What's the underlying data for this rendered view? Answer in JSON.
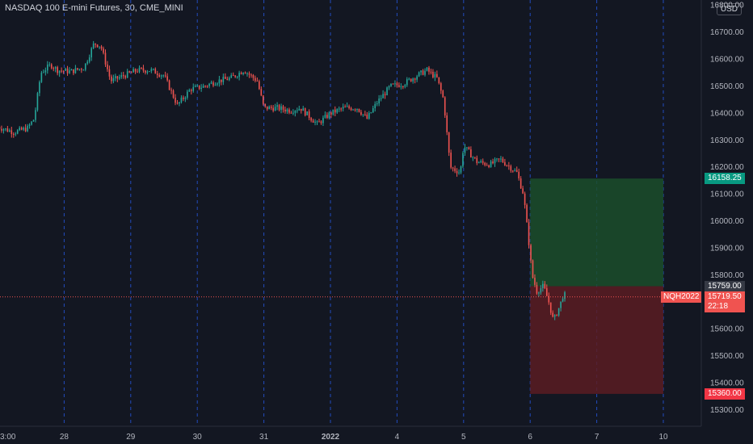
{
  "header": {
    "title": "NASDAQ 100 E-mini Futures, 30, CME_MINI",
    "currency": "USD"
  },
  "colors": {
    "background": "#131722",
    "up": "#26a69a",
    "down": "#ef5350",
    "grid_dashed": "#2962ff",
    "profit_zone": "#1b4d2a",
    "loss_zone": "#5a1c22",
    "target_tag": "#089981",
    "stop_tag": "#f23645",
    "entry_tag": "#363a45",
    "current_tag": "#f05350"
  },
  "chart_data": {
    "type": "candlestick",
    "yaxis": {
      "ticks": [
        "16800.00",
        "16700.00",
        "16600.00",
        "16500.00",
        "16400.00",
        "16300.00",
        "16200.00",
        "16100.00",
        "16000.00",
        "15900.00",
        "15800.00",
        "15700.00",
        "15600.00",
        "15500.00",
        "15400.00",
        "15300.00"
      ],
      "range": [
        15240,
        16820
      ]
    },
    "xaxis": {
      "ticks": [
        {
          "label": "3:00",
          "day": 0
        },
        {
          "label": "28",
          "day": 1
        },
        {
          "label": "29",
          "day": 2
        },
        {
          "label": "30",
          "day": 3
        },
        {
          "label": "31",
          "day": 4
        },
        {
          "label": "2022",
          "day": 5
        },
        {
          "label": "4",
          "day": 6
        },
        {
          "label": "5",
          "day": 7
        },
        {
          "label": "6",
          "day": 8
        },
        {
          "label": "7",
          "day": 9
        },
        {
          "label": "10",
          "day": 10
        }
      ]
    },
    "series": [
      {
        "day": 0.0,
        "close": 16350
      },
      {
        "day": 0.25,
        "close": 16330
      },
      {
        "day": 0.45,
        "close": 16345
      },
      {
        "day": 0.55,
        "close": 16380
      },
      {
        "day": 0.65,
        "close": 16550
      },
      {
        "day": 0.8,
        "close": 16580
      },
      {
        "day": 0.9,
        "close": 16560
      },
      {
        "day": 1.1,
        "close": 16555
      },
      {
        "day": 1.3,
        "close": 16570
      },
      {
        "day": 1.45,
        "close": 16660
      },
      {
        "day": 1.55,
        "close": 16650
      },
      {
        "day": 1.7,
        "close": 16520
      },
      {
        "day": 1.9,
        "close": 16540
      },
      {
        "day": 2.1,
        "close": 16560
      },
      {
        "day": 2.3,
        "close": 16560
      },
      {
        "day": 2.5,
        "close": 16540
      },
      {
        "day": 2.7,
        "close": 16430
      },
      {
        "day": 2.9,
        "close": 16490
      },
      {
        "day": 3.1,
        "close": 16500
      },
      {
        "day": 3.3,
        "close": 16520
      },
      {
        "day": 3.5,
        "close": 16530
      },
      {
        "day": 3.7,
        "close": 16560
      },
      {
        "day": 3.9,
        "close": 16520
      },
      {
        "day": 4.0,
        "close": 16420
      },
      {
        "day": 4.2,
        "close": 16420
      },
      {
        "day": 4.4,
        "close": 16410
      },
      {
        "day": 4.55,
        "close": 16420
      },
      {
        "day": 4.8,
        "close": 16360
      },
      {
        "day": 5.0,
        "close": 16400
      },
      {
        "day": 5.2,
        "close": 16420
      },
      {
        "day": 5.4,
        "close": 16420
      },
      {
        "day": 5.55,
        "close": 16380
      },
      {
        "day": 5.7,
        "close": 16440
      },
      {
        "day": 5.9,
        "close": 16500
      },
      {
        "day": 6.1,
        "close": 16510
      },
      {
        "day": 6.3,
        "close": 16540
      },
      {
        "day": 6.45,
        "close": 16560
      },
      {
        "day": 6.6,
        "close": 16530
      },
      {
        "day": 6.7,
        "close": 16450
      },
      {
        "day": 6.8,
        "close": 16200
      },
      {
        "day": 6.95,
        "close": 16180
      },
      {
        "day": 7.0,
        "close": 16280
      },
      {
        "day": 7.2,
        "close": 16220
      },
      {
        "day": 7.4,
        "close": 16210
      },
      {
        "day": 7.55,
        "close": 16230
      },
      {
        "day": 7.7,
        "close": 16200
      },
      {
        "day": 7.8,
        "close": 16180
      },
      {
        "day": 7.9,
        "close": 16100
      },
      {
        "day": 7.98,
        "close": 15920
      },
      {
        "day": 8.03,
        "close": 15800
      },
      {
        "day": 8.1,
        "close": 15740
      },
      {
        "day": 8.2,
        "close": 15760
      },
      {
        "day": 8.28,
        "close": 15700
      },
      {
        "day": 8.35,
        "close": 15630
      },
      {
        "day": 8.45,
        "close": 15690
      },
      {
        "day": 8.5,
        "close": 15730
      },
      {
        "day": 8.55,
        "close": 15720
      }
    ],
    "position": {
      "entry": 15759.0,
      "target": 16158.25,
      "stop": 15360.0,
      "start_day": 8.0,
      "end_day": 10.0
    },
    "current": {
      "symbol": "NQH2022",
      "price": "15719.50",
      "countdown": "22:18",
      "value": 15719.5
    },
    "tags": {
      "target": "16158.25",
      "entry": "15759.00",
      "stop": "15360.00"
    }
  }
}
